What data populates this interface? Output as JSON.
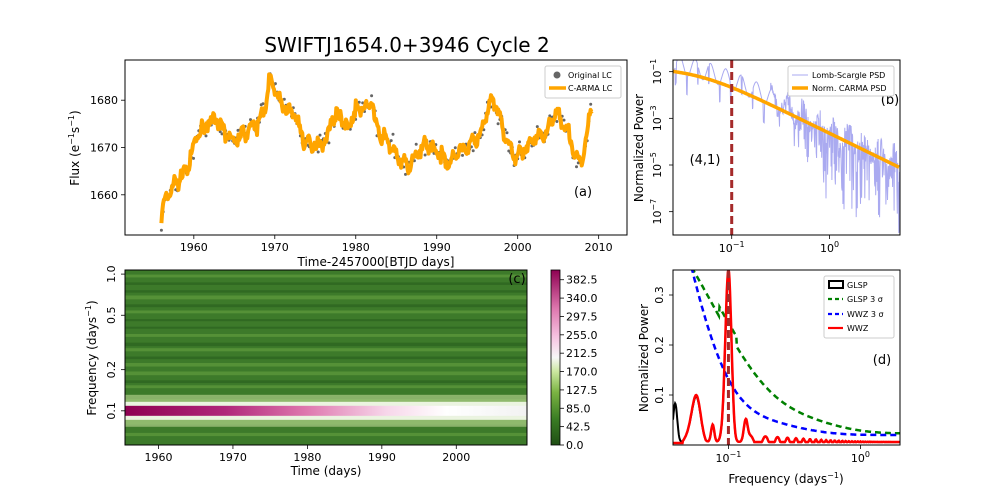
{
  "figure": {
    "title": "SWIFTJ1654.0+3946 Cycle 2"
  },
  "chart_data": [
    {
      "id": "a",
      "type": "scatter+line",
      "panel_label": "(a)",
      "xlabel": "Time-2457000[BTJD days]",
      "ylabel_main": "Flux (e",
      "ylabel_sup1": "−1",
      "ylabel_mid": "s",
      "ylabel_sup2": "−1",
      "ylabel_end": ")",
      "xlim": [
        1951.5,
        2013.5
      ],
      "ylim": [
        1651.5,
        1688.5
      ],
      "xticks": [
        1960,
        1970,
        1980,
        1990,
        2000,
        2010
      ],
      "xtick_labels": [
        "1960",
        "1970",
        "1980",
        "1990",
        "2000",
        "2010"
      ],
      "yticks": [
        1660,
        1670,
        1680
      ],
      "ytick_labels": [
        "1660",
        "1670",
        "1680"
      ],
      "legend_position": "top-right",
      "series": [
        {
          "name": "Original LC",
          "kind": "scatter",
          "color": "#666666"
        },
        {
          "name": "C-ARMA LC",
          "kind": "line",
          "color": "#ffa500",
          "knots": [
            [
              1956.0,
              1655
            ],
            [
              1956.3,
              1658
            ],
            [
              1956.8,
              1660
            ],
            [
              1957.5,
              1662
            ],
            [
              1958.5,
              1664
            ],
            [
              1959.3,
              1666
            ],
            [
              1960.0,
              1670
            ],
            [
              1960.5,
              1673
            ],
            [
              1961.2,
              1674
            ],
            [
              1962.0,
              1676
            ],
            [
              1963.0,
              1675
            ],
            [
              1964.0,
              1673
            ],
            [
              1965.0,
              1671
            ],
            [
              1966.0,
              1673
            ],
            [
              1967.0,
              1674
            ],
            [
              1968.0,
              1675
            ],
            [
              1968.8,
              1679
            ],
            [
              1969.3,
              1684
            ],
            [
              1969.8,
              1683
            ],
            [
              1970.5,
              1680
            ],
            [
              1971.5,
              1678
            ],
            [
              1972.5,
              1677
            ],
            [
              1973.5,
              1672
            ],
            [
              1974.5,
              1670
            ],
            [
              1975.5,
              1671
            ],
            [
              1976.5,
              1672
            ],
            [
              1977.0,
              1676
            ],
            [
              1978.0,
              1677
            ],
            [
              1979.0,
              1674
            ],
            [
              1980.0,
              1678
            ],
            [
              1981.0,
              1678
            ],
            [
              1982.0,
              1680
            ],
            [
              1982.5,
              1674
            ],
            [
              1983.5,
              1672
            ],
            [
              1984.5,
              1670
            ],
            [
              1985.5,
              1667
            ],
            [
              1986.5,
              1666
            ],
            [
              1987.5,
              1668
            ],
            [
              1988.5,
              1671
            ],
            [
              1989.5,
              1670
            ],
            [
              1990.5,
              1668
            ],
            [
              1991.5,
              1667
            ],
            [
              1992.5,
              1669
            ],
            [
              1993.5,
              1670
            ],
            [
              1994.5,
              1671
            ],
            [
              1995.5,
              1673
            ],
            [
              1996.5,
              1679
            ],
            [
              1997.0,
              1680
            ],
            [
              1997.8,
              1676
            ],
            [
              1998.5,
              1672
            ],
            [
              1999.5,
              1668
            ],
            [
              2000.5,
              1669
            ],
            [
              2001.5,
              1671
            ],
            [
              2002.5,
              1672
            ],
            [
              2003.5,
              1673
            ],
            [
              2004.5,
              1677
            ],
            [
              2005.5,
              1676
            ],
            [
              2006.5,
              1672
            ],
            [
              2007.2,
              1668
            ],
            [
              2008.0,
              1667
            ],
            [
              2008.5,
              1672
            ],
            [
              2009.0,
              1678
            ],
            [
              2009.2,
              1679
            ]
          ]
        }
      ]
    },
    {
      "id": "b",
      "type": "line-loglog",
      "panel_label": "(b)",
      "annotation": "(4,1)",
      "ylabel": "Normalized Power",
      "xlog_range": [
        -1.6,
        0.72
      ],
      "ylog_range": [
        -8.0,
        -0.5
      ],
      "xticks_log": [
        -1,
        0
      ],
      "xtick_base": "10",
      "xtick_exps": [
        "−1",
        "0"
      ],
      "yticks_log": [
        -7,
        -5,
        -3,
        -1
      ],
      "ytick_base": "10",
      "ytick_exps": [
        "−7",
        "−5",
        "−3",
        "−1"
      ],
      "vline_log": -1,
      "legend_position": "top-right",
      "series": [
        {
          "name": "Lomb-Scargle PSD",
          "color": "#aaaaf0"
        },
        {
          "name": "Norm. CARMA PSD",
          "color": "#ffa500"
        }
      ]
    },
    {
      "id": "c",
      "type": "heatmap",
      "panel_label": "(c)",
      "xlabel": "Time (days)",
      "ylabel_main": "Frequency (days",
      "ylabel_sup": "−1",
      "ylabel_end": ")",
      "xlim": [
        1955.5,
        2009.5
      ],
      "ylog_range": [
        -1.25,
        0.03
      ],
      "xticks": [
        1960,
        1970,
        1980,
        1990,
        2000
      ],
      "xtick_labels": [
        "1960",
        "1970",
        "1980",
        "1990",
        "2000"
      ],
      "yticks": [
        0.1,
        0.2,
        0.5,
        1.0
      ],
      "ytick_labels": [
        "0.1",
        "0.2",
        "0.5",
        "1.0"
      ],
      "colorbar": {
        "min": 0.0,
        "max": 405,
        "ticks": [
          0.0,
          42.5,
          85.0,
          127.5,
          170.0,
          212.5,
          255.0,
          297.5,
          340.0,
          382.5
        ],
        "tick_labels": [
          "0.0",
          "42.5",
          "85.0",
          "127.5",
          "170.0",
          "212.5",
          "255.0",
          "297.5",
          "340.0",
          "382.5"
        ]
      }
    },
    {
      "id": "d",
      "type": "line",
      "panel_label": "(d)",
      "xlabel_main": "Frequency (days",
      "xlabel_sup": "−1",
      "xlabel_end": ")",
      "ylabel": "Normalized Power",
      "xlog_range": [
        -1.42,
        0.3
      ],
      "ylim": [
        0.0,
        0.35
      ],
      "xticks_log": [
        -1,
        0
      ],
      "xtick_base": "10",
      "xtick_exps": [
        "−1",
        "0"
      ],
      "yticks": [
        0.1,
        0.2,
        0.3
      ],
      "ytick_labels": [
        "0.1",
        "0.2",
        "0.3"
      ],
      "vline_log": -1,
      "legend_position": "top-right",
      "series": [
        {
          "name": "GLSP",
          "color": "#000000",
          "style": "solid"
        },
        {
          "name": "GLSP 3 σ",
          "color": "#008000",
          "style": "dashed"
        },
        {
          "name": "WWZ 3 σ",
          "color": "#0000ff",
          "style": "dashed"
        },
        {
          "name": "WWZ",
          "color": "#ff0000",
          "style": "solid"
        }
      ]
    }
  ]
}
